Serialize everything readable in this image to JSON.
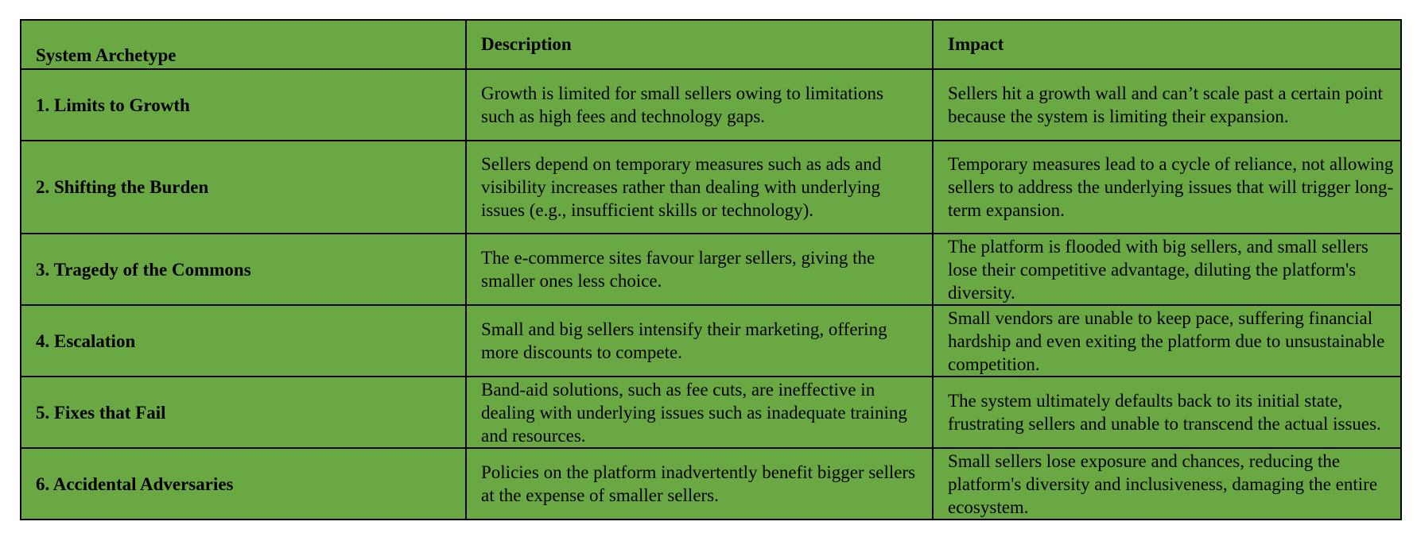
{
  "table": {
    "headers": {
      "archetype": "System Archetype",
      "description": "Description",
      "impact": "Impact"
    },
    "rows": [
      {
        "archetype": "1. Limits to Growth",
        "description": "Growth is limited for small sellers owing to limitations such as high fees and technology gaps.",
        "impact": "Sellers hit a growth wall and can’t scale past a certain point because the system is limiting their expansion."
      },
      {
        "archetype": "2. Shifting the Burden",
        "description": "Sellers depend on temporary measures such as ads and visibility increases rather than dealing with underlying issues (e.g., insufficient skills or technology).",
        "impact": "Temporary measures lead to a cycle of reliance, not allowing sellers to address the underlying issues that will trigger long-term expansion."
      },
      {
        "archetype": "3. Tragedy of the Commons",
        "description": "The e-commerce sites favour larger sellers, giving the smaller ones less choice.",
        "impact": "The platform is flooded with big sellers, and small sellers lose their competitive advantage, diluting the platform's diversity."
      },
      {
        "archetype": "4. Escalation",
        "description": "Small and big sellers intensify their marketing, offering more discounts to compete.",
        "impact": "Small vendors are unable to keep pace, suffering financial hardship and even exiting the platform due to unsustainable competition."
      },
      {
        "archetype": "5. Fixes that Fail",
        "description": "Band-aid solutions, such as fee cuts, are ineffective in dealing with underlying issues such as inadequate training and resources.",
        "impact": "The system ultimately defaults back to its initial state, frustrating sellers and unable to transcend the actual issues."
      },
      {
        "archetype": "6. Accidental Adversaries",
        "description": "Policies on the platform inadvertently benefit bigger sellers at the expense of smaller sellers.",
        "impact": "Small sellers lose exposure and chances, reducing the platform's diversity and inclusiveness, damaging the entire ecosystem."
      }
    ]
  },
  "colors": {
    "cell_background": "#6aa843",
    "border": "#000000",
    "text": "#000000",
    "page_background": "#ffffff"
  }
}
